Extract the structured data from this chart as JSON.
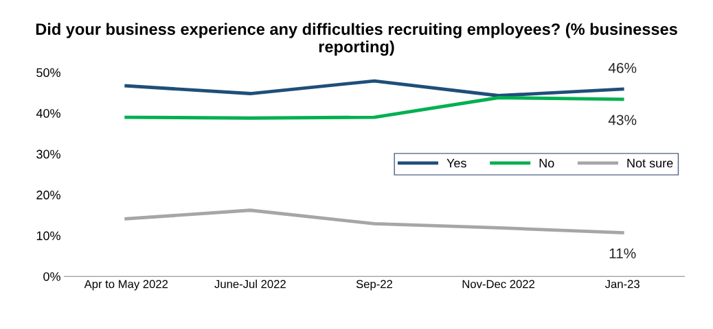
{
  "chart_data": {
    "type": "line",
    "title": "Did your business experience any difficulties recruiting employees? (% businesses reporting)",
    "categories": [
      "Apr to May 2022",
      "June-Jul 2022",
      "Sep-22",
      "Nov-Dec 2022",
      "Jan-23"
    ],
    "series": [
      {
        "name": "Yes",
        "color": "#1f4e79",
        "values": [
          46.7,
          44.8,
          47.9,
          44.3,
          45.9
        ],
        "value_labels": [
          null,
          null,
          null,
          null,
          "46%"
        ]
      },
      {
        "name": "No",
        "color": "#00b050",
        "values": [
          39.0,
          38.8,
          39.0,
          43.8,
          43.4
        ],
        "value_labels": [
          null,
          null,
          null,
          null,
          "43%"
        ]
      },
      {
        "name": "Not sure",
        "color": "#a6a6a6",
        "values": [
          14.1,
          16.2,
          12.9,
          11.9,
          10.7
        ],
        "value_labels": [
          null,
          null,
          null,
          null,
          "11%"
        ]
      }
    ],
    "ylim": [
      0,
      50
    ],
    "yticks": [
      {
        "value": 0,
        "label": "0%"
      },
      {
        "value": 10,
        "label": "10%"
      },
      {
        "value": 20,
        "label": "20%"
      },
      {
        "value": 30,
        "label": "30%"
      },
      {
        "value": 40,
        "label": "40%"
      },
      {
        "value": 50,
        "label": "50%"
      }
    ],
    "grid": false,
    "legend": "right",
    "marker": "none",
    "line_style": "solid"
  }
}
